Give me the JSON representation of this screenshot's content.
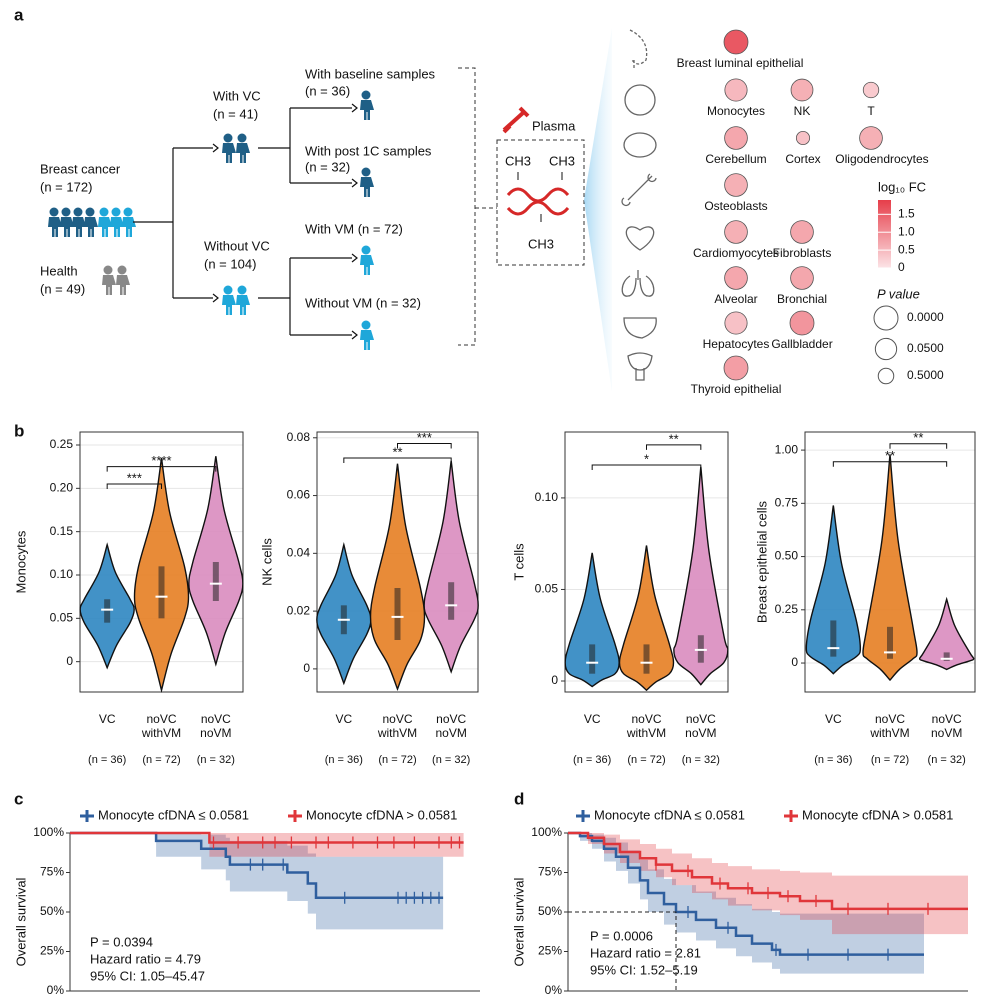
{
  "panel_labels": [
    "a",
    "b",
    "c",
    "d"
  ],
  "diagram": {
    "breast_cancer": "Breast cancer",
    "breast_cancer_n": "(n = 172)",
    "health": "Health",
    "health_n": "(n = 49)",
    "with_vc": "With VC",
    "with_vc_n": "(n = 41)",
    "without_vc": "Without VC",
    "without_vc_n": "(n = 104)",
    "baseline": "With baseline samples",
    "baseline_n": "(n = 36)",
    "post": "With post 1C samples",
    "post_n": "(n = 32)",
    "with_vm": "With VM (n = 72)",
    "without_vm": "Without VM (n = 32)",
    "plasma": "Plasma",
    "methyl": [
      "CH3",
      "CH3",
      "CH3"
    ]
  },
  "chart_data": [
    {
      "type": "bubble",
      "labels": [
        "Breast luminal epithelial",
        "Monocytes",
        "NK",
        "T",
        "Cerebellum",
        "Cortex",
        "Oligodendrocytes",
        "Osteoblasts",
        "Cardiomyocytes",
        "Fibroblasts",
        "Alveolar",
        "Bronchial",
        "Hepatocytes",
        "Gallbladder",
        "Thyroid epithelial"
      ],
      "log10_fc": [
        1.6,
        0.5,
        0.6,
        0.3,
        0.7,
        0.4,
        0.6,
        0.6,
        0.6,
        0.7,
        0.7,
        0.7,
        0.4,
        0.9,
        0.8
      ],
      "p_values": [
        0.0,
        0.02,
        0.03,
        0.5,
        0.01,
        0.8,
        0.01,
        0.01,
        0.01,
        0.01,
        0.01,
        0.01,
        0.02,
        0.0,
        0.0
      ],
      "color_title": "log₁₀ FC",
      "clim": [
        0,
        1.9
      ],
      "colorbar_ticks": [
        0,
        0.5,
        {
          "value": 1,
          "label": "1.0"
        },
        1.5
      ],
      "color_low": "#fce4e7",
      "color_high": "#e63e4a",
      "size_title": "P value",
      "size_ticks": [
        {
          "value": 0,
          "label": "0.0000"
        },
        {
          "value": 0.05,
          "label": "0.0500"
        },
        {
          "value": 0.5,
          "label": "0.5000"
        }
      ]
    },
    {
      "type": "violin",
      "ylabel": "Monocytes",
      "categories": [
        "VC",
        "noVC withVM",
        "noVC noVM"
      ],
      "n_labels": [
        "(n = 36)",
        "(n = 72)",
        "(n = 32)"
      ],
      "colors": [
        "#2e86c1",
        "#e67e22",
        "#d98cbf"
      ],
      "ylim": [
        -0.035,
        0.265
      ],
      "yticks": [
        0,
        0.05,
        {
          "value": 0.1,
          "label": "0.10"
        },
        0.15,
        {
          "value": 0.2,
          "label": "0.20"
        },
        0.25
      ],
      "groups": [
        {
          "min": -0.007,
          "q1": 0.045,
          "median": 0.06,
          "q3": 0.072,
          "max": 0.135
        },
        {
          "min": -0.033,
          "q1": 0.05,
          "median": 0.075,
          "q3": 0.11,
          "max": 0.235
        },
        {
          "min": -0.003,
          "q1": 0.07,
          "median": 0.09,
          "q3": 0.115,
          "max": 0.237
        }
      ],
      "brackets": [
        {
          "from": 0,
          "to": 1,
          "y": 0.205,
          "label": "***"
        },
        {
          "from": 0,
          "to": 2,
          "y": 0.225,
          "label": "****"
        }
      ]
    },
    {
      "type": "violin",
      "ylabel": "NK cells",
      "categories": [
        "VC",
        "noVC withVM",
        "noVC noVM"
      ],
      "n_labels": [
        "(n = 36)",
        "(n = 72)",
        "(n = 32)"
      ],
      "colors": [
        "#2e86c1",
        "#e67e22",
        "#d98cbf"
      ],
      "ylim": [
        -0.008,
        0.082
      ],
      "yticks": [
        0,
        0.02,
        0.04,
        0.06,
        0.08
      ],
      "groups": [
        {
          "min": -0.005,
          "q1": 0.012,
          "median": 0.017,
          "q3": 0.022,
          "max": 0.043
        },
        {
          "min": -0.007,
          "q1": 0.01,
          "median": 0.018,
          "q3": 0.028,
          "max": 0.071
        },
        {
          "min": -0.001,
          "q1": 0.017,
          "median": 0.022,
          "q3": 0.03,
          "max": 0.072
        }
      ],
      "brackets": [
        {
          "from": 0,
          "to": 2,
          "y": 0.073,
          "label": "**"
        },
        {
          "from": 1,
          "to": 2,
          "y": 0.078,
          "label": "***"
        }
      ]
    },
    {
      "type": "violin",
      "ylabel": "T cells",
      "categories": [
        "VC",
        "noVC withVM",
        "noVC noVM"
      ],
      "n_labels": [
        "(n = 36)",
        "(n = 72)",
        "(n = 32)"
      ],
      "colors": [
        "#2e86c1",
        "#e67e22",
        "#d98cbf"
      ],
      "ylim": [
        -0.006,
        0.136
      ],
      "yticks": [
        0,
        0.05,
        {
          "value": 0.1,
          "label": "0.10"
        }
      ],
      "groups": [
        {
          "min": -0.003,
          "q1": 0.004,
          "median": 0.01,
          "q3": 0.02,
          "max": 0.07
        },
        {
          "min": -0.005,
          "q1": 0.004,
          "median": 0.01,
          "q3": 0.02,
          "max": 0.074
        },
        {
          "min": -0.002,
          "q1": 0.01,
          "median": 0.017,
          "q3": 0.025,
          "max": 0.117
        }
      ],
      "brackets": [
        {
          "from": 0,
          "to": 2,
          "y": 0.118,
          "label": "*"
        },
        {
          "from": 1,
          "to": 2,
          "y": 0.129,
          "label": "**"
        }
      ]
    },
    {
      "type": "violin",
      "ylabel": "Breast epithelial cells",
      "categories": [
        "VC",
        "noVC withVM",
        "noVC noVM"
      ],
      "n_labels": [
        "(n = 36)",
        "(n = 72)",
        "(n = 32)"
      ],
      "colors": [
        "#2e86c1",
        "#e67e22",
        "#d98cbf"
      ],
      "ylim": [
        -0.136,
        1.085
      ],
      "yticks": [
        0,
        0.25,
        {
          "value": 0.5,
          "label": "0.50"
        },
        0.75,
        {
          "value": 1,
          "label": "1.00"
        }
      ],
      "groups": [
        {
          "min": -0.05,
          "q1": 0.03,
          "median": 0.07,
          "q3": 0.2,
          "max": 0.74
        },
        {
          "min": -0.08,
          "q1": 0.02,
          "median": 0.05,
          "q3": 0.17,
          "max": 0.98
        },
        {
          "min": -0.03,
          "q1": 0.01,
          "median": 0.02,
          "q3": 0.05,
          "max": 0.3
        }
      ],
      "brackets": [
        {
          "from": 0,
          "to": 2,
          "y": 0.945,
          "label": "**"
        },
        {
          "from": 1,
          "to": 2,
          "y": 1.03,
          "label": "**"
        }
      ]
    },
    {
      "type": "km",
      "ylabel": "Overall survival",
      "xlim": [
        0,
        100
      ],
      "ylim": [
        0,
        100
      ],
      "yticks": [
        {
          "value": 0,
          "label": "0%"
        },
        {
          "value": 25,
          "label": "25%"
        },
        {
          "value": 50,
          "label": "50%"
        },
        {
          "value": 75,
          "label": "75%"
        },
        {
          "value": 100,
          "label": "100%"
        }
      ],
      "series": [
        {
          "name": "Monocyte cfDNA ≤ 0.0581",
          "color": "#2f5f9e",
          "x": [
            0,
            21,
            32,
            38,
            39,
            53,
            58,
            60,
            91
          ],
          "values": [
            100,
            95,
            90,
            85,
            80,
            75,
            68,
            59,
            59
          ],
          "ci_lower": [
            100,
            85,
            77,
            70,
            63,
            57,
            49,
            39,
            39
          ],
          "ci_upper": [
            100,
            100,
            99,
            97,
            95,
            92,
            87,
            85,
            85
          ],
          "censored": [
            44,
            47,
            52,
            67,
            80,
            82,
            84,
            86,
            88,
            90
          ]
        },
        {
          "name": "Monocyte cfDNA > 0.0581",
          "color": "#e0363a",
          "x": [
            0,
            34,
            96
          ],
          "values": [
            100,
            94,
            94
          ],
          "ci_lower": [
            100,
            85,
            85
          ],
          "ci_upper": [
            100,
            100,
            100
          ],
          "censored": [
            35,
            41,
            47,
            50,
            54,
            60,
            63,
            69,
            75,
            79,
            84,
            90,
            93,
            95
          ]
        }
      ],
      "annotations": [
        "P = 0.0394",
        "Hazard ratio = 4.79",
        "95% CI: 1.05–45.47"
      ]
    },
    {
      "type": "km",
      "ylabel": "Overall survival",
      "xlim": [
        0,
        100
      ],
      "ylim": [
        0,
        100
      ],
      "yticks": [
        {
          "value": 0,
          "label": "0%"
        },
        {
          "value": 25,
          "label": "25%"
        },
        {
          "value": 50,
          "label": "50%"
        },
        {
          "value": 75,
          "label": "75%"
        },
        {
          "value": 100,
          "label": "100%"
        }
      ],
      "series": [
        {
          "name": "Monocyte cfDNA ≤ 0.0581",
          "color": "#2f5f9e",
          "x": [
            0,
            3,
            6,
            9,
            12,
            15,
            18,
            20,
            24,
            27,
            32,
            37,
            42,
            46,
            51,
            53,
            89
          ],
          "values": [
            100,
            98,
            95,
            90,
            85,
            78,
            70,
            62,
            55,
            50,
            45,
            40,
            35,
            30,
            26,
            23,
            23
          ],
          "ci_lower": [
            100,
            95,
            90,
            82,
            76,
            68,
            58,
            50,
            42,
            37,
            32,
            27,
            22,
            18,
            14,
            11,
            11
          ],
          "ci_upper": [
            100,
            100,
            99,
            97,
            94,
            89,
            83,
            77,
            71,
            67,
            63,
            59,
            55,
            52,
            50,
            49,
            49
          ],
          "censored": [
            30,
            40,
            52,
            60,
            70,
            80
          ]
        },
        {
          "name": "Monocyte cfDNA > 0.0581",
          "color": "#e0363a",
          "x": [
            0,
            5,
            9,
            13,
            18,
            22,
            26,
            31,
            36,
            40,
            46,
            53,
            58,
            66,
            100
          ],
          "values": [
            100,
            97,
            93,
            88,
            84,
            80,
            76,
            72,
            68,
            65,
            62,
            60,
            57,
            52,
            52
          ],
          "ci_lower": [
            100,
            93,
            87,
            81,
            76,
            72,
            67,
            62,
            58,
            54,
            51,
            48,
            45,
            36,
            36
          ],
          "ci_upper": [
            100,
            100,
            99,
            96,
            93,
            90,
            87,
            84,
            81,
            79,
            77,
            76,
            75,
            73,
            73
          ],
          "censored": [
            22,
            30,
            38,
            45,
            50,
            55,
            62,
            70,
            80,
            90
          ]
        }
      ],
      "annotations": [
        "P = 0.0006",
        "Hazard ratio = 2.81",
        "95% CI: 1.52–5.19"
      ]
    }
  ]
}
